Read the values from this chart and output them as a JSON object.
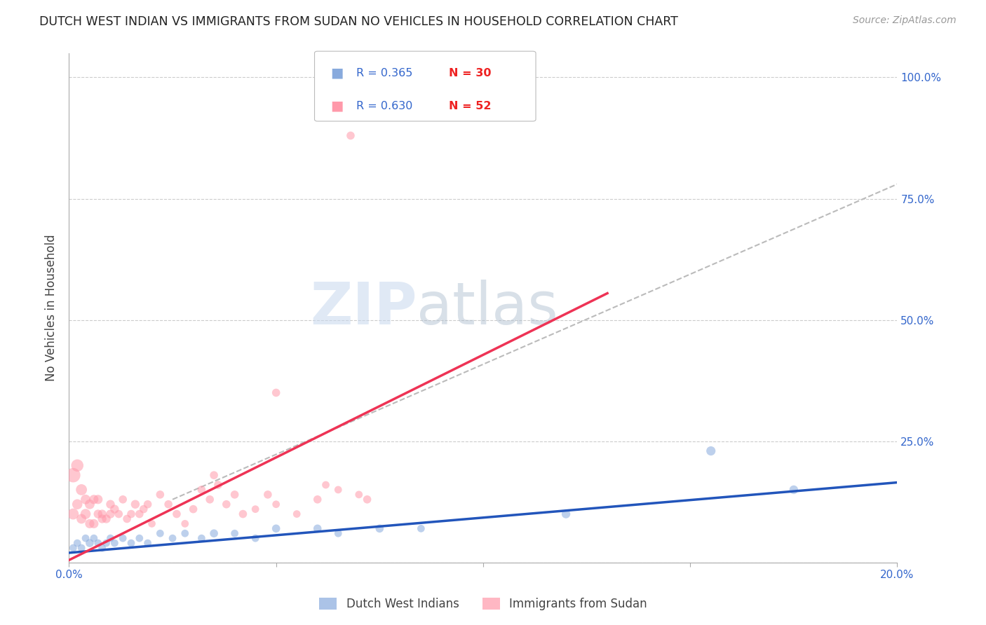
{
  "title": "DUTCH WEST INDIAN VS IMMIGRANTS FROM SUDAN NO VEHICLES IN HOUSEHOLD CORRELATION CHART",
  "source": "Source: ZipAtlas.com",
  "ylabel_label": "No Vehicles in Household",
  "xlim": [
    0.0,
    0.2
  ],
  "ylim": [
    0.0,
    1.05
  ],
  "xticks": [
    0.0,
    0.05,
    0.1,
    0.15,
    0.2
  ],
  "xtick_labels": [
    "0.0%",
    "",
    "",
    "",
    "20.0%"
  ],
  "yticks_right": [
    0.0,
    0.25,
    0.5,
    0.75,
    1.0
  ],
  "ytick_right_labels": [
    "",
    "25.0%",
    "50.0%",
    "75.0%",
    "100.0%"
  ],
  "blue_color": "#88AADD",
  "pink_color": "#FF99AA",
  "blue_line_color": "#2255BB",
  "pink_line_color": "#EE3355",
  "legend_R_blue": "R = 0.365",
  "legend_N_blue": "N = 30",
  "legend_R_pink": "R = 0.630",
  "legend_N_pink": "N = 52",
  "legend_label_blue": "Dutch West Indians",
  "legend_label_pink": "Immigrants from Sudan",
  "background_color": "#FFFFFF",
  "grid_color": "#CCCCCC",
  "watermark_zip": "ZIP",
  "watermark_atlas": "atlas",
  "blue_scatter_x": [
    0.001,
    0.002,
    0.003,
    0.004,
    0.005,
    0.006,
    0.007,
    0.008,
    0.009,
    0.01,
    0.011,
    0.013,
    0.015,
    0.017,
    0.019,
    0.022,
    0.025,
    0.028,
    0.032,
    0.035,
    0.04,
    0.045,
    0.05,
    0.06,
    0.065,
    0.075,
    0.085,
    0.12,
    0.155,
    0.175
  ],
  "blue_scatter_y": [
    0.03,
    0.04,
    0.03,
    0.05,
    0.04,
    0.05,
    0.04,
    0.03,
    0.04,
    0.05,
    0.04,
    0.05,
    0.04,
    0.05,
    0.04,
    0.06,
    0.05,
    0.06,
    0.05,
    0.06,
    0.06,
    0.05,
    0.07,
    0.07,
    0.06,
    0.07,
    0.07,
    0.1,
    0.23,
    0.15
  ],
  "blue_scatter_size": [
    60,
    60,
    60,
    60,
    70,
    60,
    60,
    60,
    60,
    60,
    60,
    60,
    60,
    60,
    60,
    60,
    60,
    60,
    60,
    70,
    60,
    60,
    70,
    70,
    60,
    70,
    60,
    80,
    90,
    80
  ],
  "pink_scatter_x": [
    0.001,
    0.001,
    0.002,
    0.002,
    0.003,
    0.003,
    0.004,
    0.004,
    0.005,
    0.005,
    0.006,
    0.006,
    0.007,
    0.007,
    0.008,
    0.008,
    0.009,
    0.01,
    0.01,
    0.011,
    0.012,
    0.013,
    0.014,
    0.015,
    0.016,
    0.017,
    0.018,
    0.019,
    0.02,
    0.022,
    0.024,
    0.026,
    0.028,
    0.03,
    0.032,
    0.034,
    0.036,
    0.038,
    0.04,
    0.042,
    0.045,
    0.048,
    0.05,
    0.055,
    0.06,
    0.062,
    0.065,
    0.068,
    0.05,
    0.072,
    0.035,
    0.07
  ],
  "pink_scatter_y": [
    0.18,
    0.1,
    0.2,
    0.12,
    0.15,
    0.09,
    0.1,
    0.13,
    0.12,
    0.08,
    0.08,
    0.13,
    0.13,
    0.1,
    0.1,
    0.09,
    0.09,
    0.12,
    0.1,
    0.11,
    0.1,
    0.13,
    0.09,
    0.1,
    0.12,
    0.1,
    0.11,
    0.12,
    0.08,
    0.14,
    0.12,
    0.1,
    0.08,
    0.11,
    0.15,
    0.13,
    0.16,
    0.12,
    0.14,
    0.1,
    0.11,
    0.14,
    0.12,
    0.1,
    0.13,
    0.16,
    0.15,
    0.88,
    0.35,
    0.13,
    0.18,
    0.14
  ],
  "pink_scatter_size": [
    220,
    130,
    160,
    110,
    130,
    100,
    110,
    100,
    100,
    90,
    90,
    90,
    90,
    80,
    80,
    80,
    80,
    80,
    80,
    80,
    70,
    70,
    70,
    70,
    80,
    70,
    70,
    70,
    60,
    70,
    70,
    70,
    60,
    70,
    70,
    70,
    70,
    70,
    70,
    70,
    60,
    70,
    60,
    60,
    70,
    60,
    60,
    70,
    70,
    70,
    70,
    60
  ],
  "blue_line_x": [
    0.0,
    0.2
  ],
  "blue_line_y": [
    0.02,
    0.165
  ],
  "pink_line_x": [
    0.0,
    0.13
  ],
  "pink_line_y": [
    0.005,
    0.555
  ],
  "dash_line_x": [
    0.025,
    0.2
  ],
  "dash_line_y": [
    0.13,
    0.78
  ]
}
